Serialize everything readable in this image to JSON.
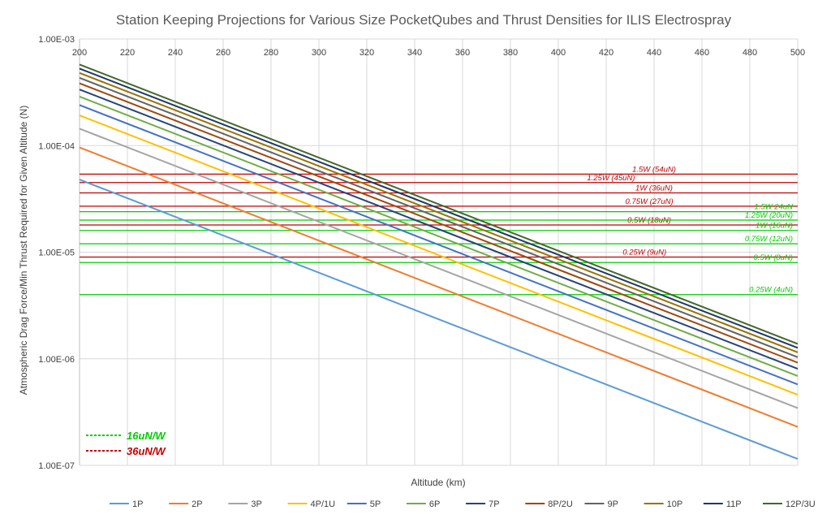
{
  "chart_data": {
    "type": "line",
    "title": "Station Keeping Projections for Various Size PocketQubes and Thrust Densities for ILIS Electrospray",
    "xlabel": "Altitude (km)",
    "ylabel": "Atmospheric Drag Force/Min Thrust Required for Given Altitude (N)",
    "xlim": [
      200,
      500
    ],
    "ylim": [
      1e-07,
      0.001
    ],
    "y_scale": "log",
    "x_axis_position": "top",
    "grid": true,
    "legend_position": "bottom",
    "x_ticks": [
      "200",
      "220",
      "240",
      "260",
      "280",
      "300",
      "320",
      "340",
      "360",
      "380",
      "400",
      "420",
      "440",
      "460",
      "480",
      "500"
    ],
    "y_ticks": [
      "1.00E-03",
      "1.00E-04",
      "1.00E-05",
      "1.00E-06",
      "1.00E-07"
    ],
    "x": [
      200,
      500
    ],
    "series": [
      {
        "name": "1P",
        "color": "#5B9BD5",
        "values": [
          4.8e-05,
          1.15e-07
        ]
      },
      {
        "name": "2P",
        "color": "#ED7D31",
        "values": [
          9.6e-05,
          2.3e-07
        ]
      },
      {
        "name": "3P",
        "color": "#A5A5A5",
        "values": [
          0.000144,
          3.45e-07
        ]
      },
      {
        "name": "4P/1U",
        "color": "#FFC000",
        "values": [
          0.000192,
          4.6e-07
        ]
      },
      {
        "name": "5P",
        "color": "#4472C4",
        "values": [
          0.00024,
          5.75e-07
        ]
      },
      {
        "name": "6P",
        "color": "#70AD47",
        "values": [
          0.000288,
          6.9e-07
        ]
      },
      {
        "name": "7P",
        "color": "#264478",
        "values": [
          0.000336,
          8.05e-07
        ]
      },
      {
        "name": "8P/2U",
        "color": "#9E480E",
        "values": [
          0.000384,
          9.2e-07
        ]
      },
      {
        "name": "9P",
        "color": "#636363",
        "values": [
          0.000432,
          1.035e-06
        ]
      },
      {
        "name": "10P",
        "color": "#997300",
        "values": [
          0.00048,
          1.15e-06
        ]
      },
      {
        "name": "11P",
        "color": "#1F3864",
        "values": [
          0.000528,
          1.265e-06
        ]
      },
      {
        "name": "12P/3U",
        "color": "#43682B",
        "values": [
          0.000576,
          1.38e-06
        ]
      }
    ],
    "reference_lines": [
      {
        "label": "1.5W (54uN)",
        "value": 5.4e-05,
        "color": "#C00000",
        "label_x": 440
      },
      {
        "label": "1.25W (45uN)",
        "value": 4.5e-05,
        "color": "#C00000",
        "label_x": 422
      },
      {
        "label": "1W (36uN)",
        "value": 3.6e-05,
        "color": "#C00000",
        "label_x": 440
      },
      {
        "label": "0.75W (27uN)",
        "value": 2.7e-05,
        "color": "#C00000",
        "label_x": 438
      },
      {
        "label": "1.5W 24uN",
        "value": 2.4e-05,
        "color": "#00CC00",
        "label_x": 490
      },
      {
        "label": "0.5W (18uN)",
        "value": 1.8e-05,
        "color": "#C00000",
        "label_x": 438
      },
      {
        "label": "1.25W (20uN)",
        "value": 2e-05,
        "color": "#00CC00",
        "label_x": 490
      },
      {
        "label": "1W (16uN)",
        "value": 1.6e-05,
        "color": "#00CC00",
        "label_x": 490
      },
      {
        "label": "0.75W (12uN)",
        "value": 1.2e-05,
        "color": "#00CC00",
        "label_x": 490
      },
      {
        "label": "0.25W (9uN)",
        "value": 9e-06,
        "color": "#C00000",
        "label_x": 436
      },
      {
        "label": "0.5W (8uN)",
        "value": 8e-06,
        "color": "#00CC00",
        "label_x": 490
      },
      {
        "label": "0.25W (4uN)",
        "value": 4e-06,
        "color": "#00CC00",
        "label_x": 490
      }
    ],
    "key": [
      {
        "label": "16uN/W",
        "color": "#00CC00"
      },
      {
        "label": "36uN/W",
        "color": "#C00000"
      }
    ]
  }
}
